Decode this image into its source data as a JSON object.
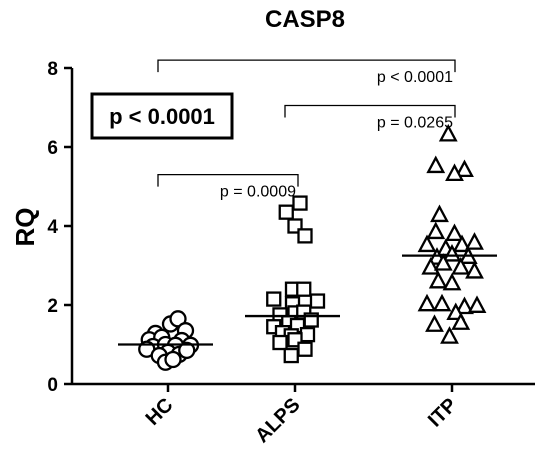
{
  "chart_data": {
    "type": "scatter",
    "title": "CASP8",
    "ylabel": "RQ",
    "xlabel": "",
    "ylim": [
      0,
      8
    ],
    "yticks": [
      0,
      2,
      4,
      6,
      8
    ],
    "categories": [
      "HC",
      "ALPS",
      "ITP"
    ],
    "series": [
      {
        "category": "HC",
        "marker": "circle",
        "median": 1.0,
        "points": [
          {
            "offset": -0.1,
            "y": 1.28
          },
          {
            "offset": 0.02,
            "y": 1.52
          },
          {
            "offset": 0.08,
            "y": 1.65
          },
          {
            "offset": 0.14,
            "y": 1.35
          },
          {
            "offset": -0.15,
            "y": 1.12
          },
          {
            "offset": -0.05,
            "y": 1.18
          },
          {
            "offset": 0.11,
            "y": 1.1
          },
          {
            "offset": -0.12,
            "y": 0.95
          },
          {
            "offset": -0.02,
            "y": 1.0
          },
          {
            "offset": 0.06,
            "y": 0.98
          },
          {
            "offset": 0.18,
            "y": 0.98
          },
          {
            "offset": -0.17,
            "y": 0.88
          },
          {
            "offset": 0.0,
            "y": 0.8
          },
          {
            "offset": -0.07,
            "y": 0.72
          },
          {
            "offset": 0.09,
            "y": 0.75
          },
          {
            "offset": -0.02,
            "y": 0.55
          },
          {
            "offset": 0.04,
            "y": 0.62
          },
          {
            "offset": 0.15,
            "y": 0.85
          }
        ]
      },
      {
        "category": "ALPS",
        "marker": "square",
        "median": 1.72,
        "points": [
          {
            "offset": 0.04,
            "y": 4.58
          },
          {
            "offset": -0.07,
            "y": 4.35
          },
          {
            "offset": 0.0,
            "y": 4.0
          },
          {
            "offset": 0.08,
            "y": 3.75
          },
          {
            "offset": -0.02,
            "y": 2.4
          },
          {
            "offset": 0.07,
            "y": 2.4
          },
          {
            "offset": -0.02,
            "y": 2.03
          },
          {
            "offset": -0.17,
            "y": 2.15
          },
          {
            "offset": 0.18,
            "y": 2.1
          },
          {
            "offset": 0.0,
            "y": 1.8
          },
          {
            "offset": -0.12,
            "y": 1.75
          },
          {
            "offset": -0.05,
            "y": 1.55
          },
          {
            "offset": 0.07,
            "y": 1.82
          },
          {
            "offset": 0.13,
            "y": 1.62
          },
          {
            "offset": -0.17,
            "y": 1.45
          },
          {
            "offset": -0.1,
            "y": 1.3
          },
          {
            "offset": 0.02,
            "y": 1.48
          },
          {
            "offset": -0.03,
            "y": 1.22
          },
          {
            "offset": 0.1,
            "y": 1.25
          },
          {
            "offset": -0.12,
            "y": 1.05
          },
          {
            "offset": 0.0,
            "y": 1.12
          },
          {
            "offset": 0.08,
            "y": 0.88
          },
          {
            "offset": -0.03,
            "y": 0.72
          }
        ]
      },
      {
        "category": "ITP",
        "marker": "triangle",
        "median": 3.25,
        "points": [
          {
            "offset": -0.03,
            "y": 6.32
          },
          {
            "offset": -0.13,
            "y": 5.52
          },
          {
            "offset": 0.1,
            "y": 5.42
          },
          {
            "offset": 0.02,
            "y": 5.32
          },
          {
            "offset": -0.1,
            "y": 4.28
          },
          {
            "offset": -0.13,
            "y": 3.85
          },
          {
            "offset": 0.02,
            "y": 3.8
          },
          {
            "offset": -0.2,
            "y": 3.52
          },
          {
            "offset": -0.05,
            "y": 3.42
          },
          {
            "offset": 0.08,
            "y": 3.52
          },
          {
            "offset": 0.18,
            "y": 3.58
          },
          {
            "offset": -0.12,
            "y": 3.2
          },
          {
            "offset": 0.0,
            "y": 3.28
          },
          {
            "offset": 0.13,
            "y": 3.22
          },
          {
            "offset": -0.17,
            "y": 2.95
          },
          {
            "offset": -0.07,
            "y": 3.05
          },
          {
            "offset": 0.07,
            "y": 2.95
          },
          {
            "offset": 0.18,
            "y": 2.85
          },
          {
            "offset": -0.11,
            "y": 2.6
          },
          {
            "offset": 0.0,
            "y": 2.55
          },
          {
            "offset": -0.2,
            "y": 2.02
          },
          {
            "offset": -0.08,
            "y": 2.02
          },
          {
            "offset": 0.1,
            "y": 1.95
          },
          {
            "offset": 0.2,
            "y": 1.98
          },
          {
            "offset": 0.03,
            "y": 1.8
          },
          {
            "offset": -0.14,
            "y": 1.5
          },
          {
            "offset": 0.07,
            "y": 1.55
          },
          {
            "offset": -0.02,
            "y": 1.2
          }
        ]
      }
    ],
    "annotations": {
      "boxed_text": "p < 0.0001",
      "comparisons": [
        {
          "from": "HC",
          "to": "ALPS",
          "label": "p = 0.0009",
          "y": 5.3
        },
        {
          "from": "ALPS",
          "to": "ITP",
          "label": "p = 0.0265",
          "y": 7.05
        },
        {
          "from": "HC",
          "to": "ITP",
          "label": "p < 0.0001",
          "y": 8.2
        }
      ]
    }
  }
}
